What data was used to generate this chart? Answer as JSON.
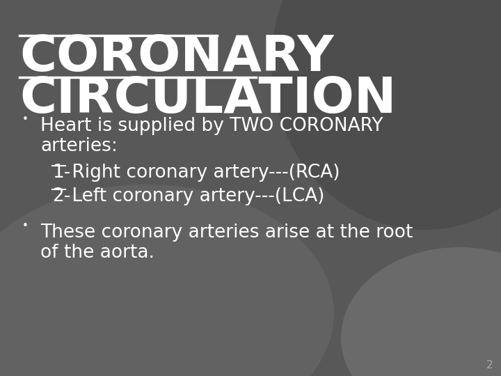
{
  "title_line1": "CORONARY",
  "title_line2": "CIRCULATION",
  "title_color": "#FFFFFF",
  "title_fontsize": 52,
  "title_font": "Arial",
  "bg_color_main": "#585858",
  "bg_color_dark": "#4a4a4a",
  "bg_color_light": "#6e6e6e",
  "text_color": "#FFFFFF",
  "bullet_color": "#FFFFFF",
  "body_fontsize": 19,
  "bullet1_line1": "Heart is supplied by TWO CORONARY",
  "bullet1_line2": "arteries:",
  "sub1_label": "1-",
  "sub1_text": " Right coronary artery---(RCA)",
  "sub2_label": "2-",
  "sub2_text": " Left coronary artery---(LCA)",
  "bullet2_line1": "These coronary arteries arise at the root",
  "bullet2_line2": "of the aorta.",
  "page_number": "2",
  "page_num_color": "#AAAAAA",
  "page_num_fontsize": 11
}
